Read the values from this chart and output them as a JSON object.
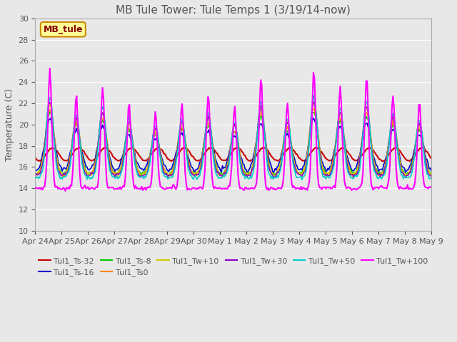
{
  "title": "MB Tule Tower: Tule Temps 1 (3/19/14-now)",
  "ylabel": "Temperature (C)",
  "ylim": [
    10,
    30
  ],
  "yticks": [
    10,
    12,
    14,
    16,
    18,
    20,
    22,
    24,
    26,
    28,
    30
  ],
  "xlim": [
    0,
    15
  ],
  "xtick_labels": [
    "Apr 24",
    "Apr 25",
    "Apr 26",
    "Apr 27",
    "Apr 28",
    "Apr 29",
    "Apr 30",
    "May 1",
    "May 2",
    "May 3",
    "May 4",
    "May 5",
    "May 6",
    "May 7",
    "May 8",
    "May 9"
  ],
  "series_names": [
    "Tul1_Ts-32",
    "Tul1_Ts-16",
    "Tul1_Ts-8",
    "Tul1_Ts0",
    "Tul1_Tw+10",
    "Tul1_Tw+30",
    "Tul1_Tw+50",
    "Tul1_Tw+100"
  ],
  "series_colors": [
    "#cc0000",
    "#0000cc",
    "#00cc00",
    "#ff8800",
    "#cccc00",
    "#8800cc",
    "#00cccc",
    "#ff00ff"
  ],
  "series_widths": [
    1.5,
    1.2,
    1.2,
    1.2,
    1.2,
    1.2,
    1.2,
    1.5
  ],
  "legend_box_label": "MB_tule",
  "legend_box_color": "#ffff99",
  "legend_box_border": "#cc8800",
  "background_color": "#e8e8e8",
  "plot_bg_color": "#e8e8e8",
  "grid_color": "#ffffff",
  "title_color": "#555555",
  "label_color": "#555555"
}
